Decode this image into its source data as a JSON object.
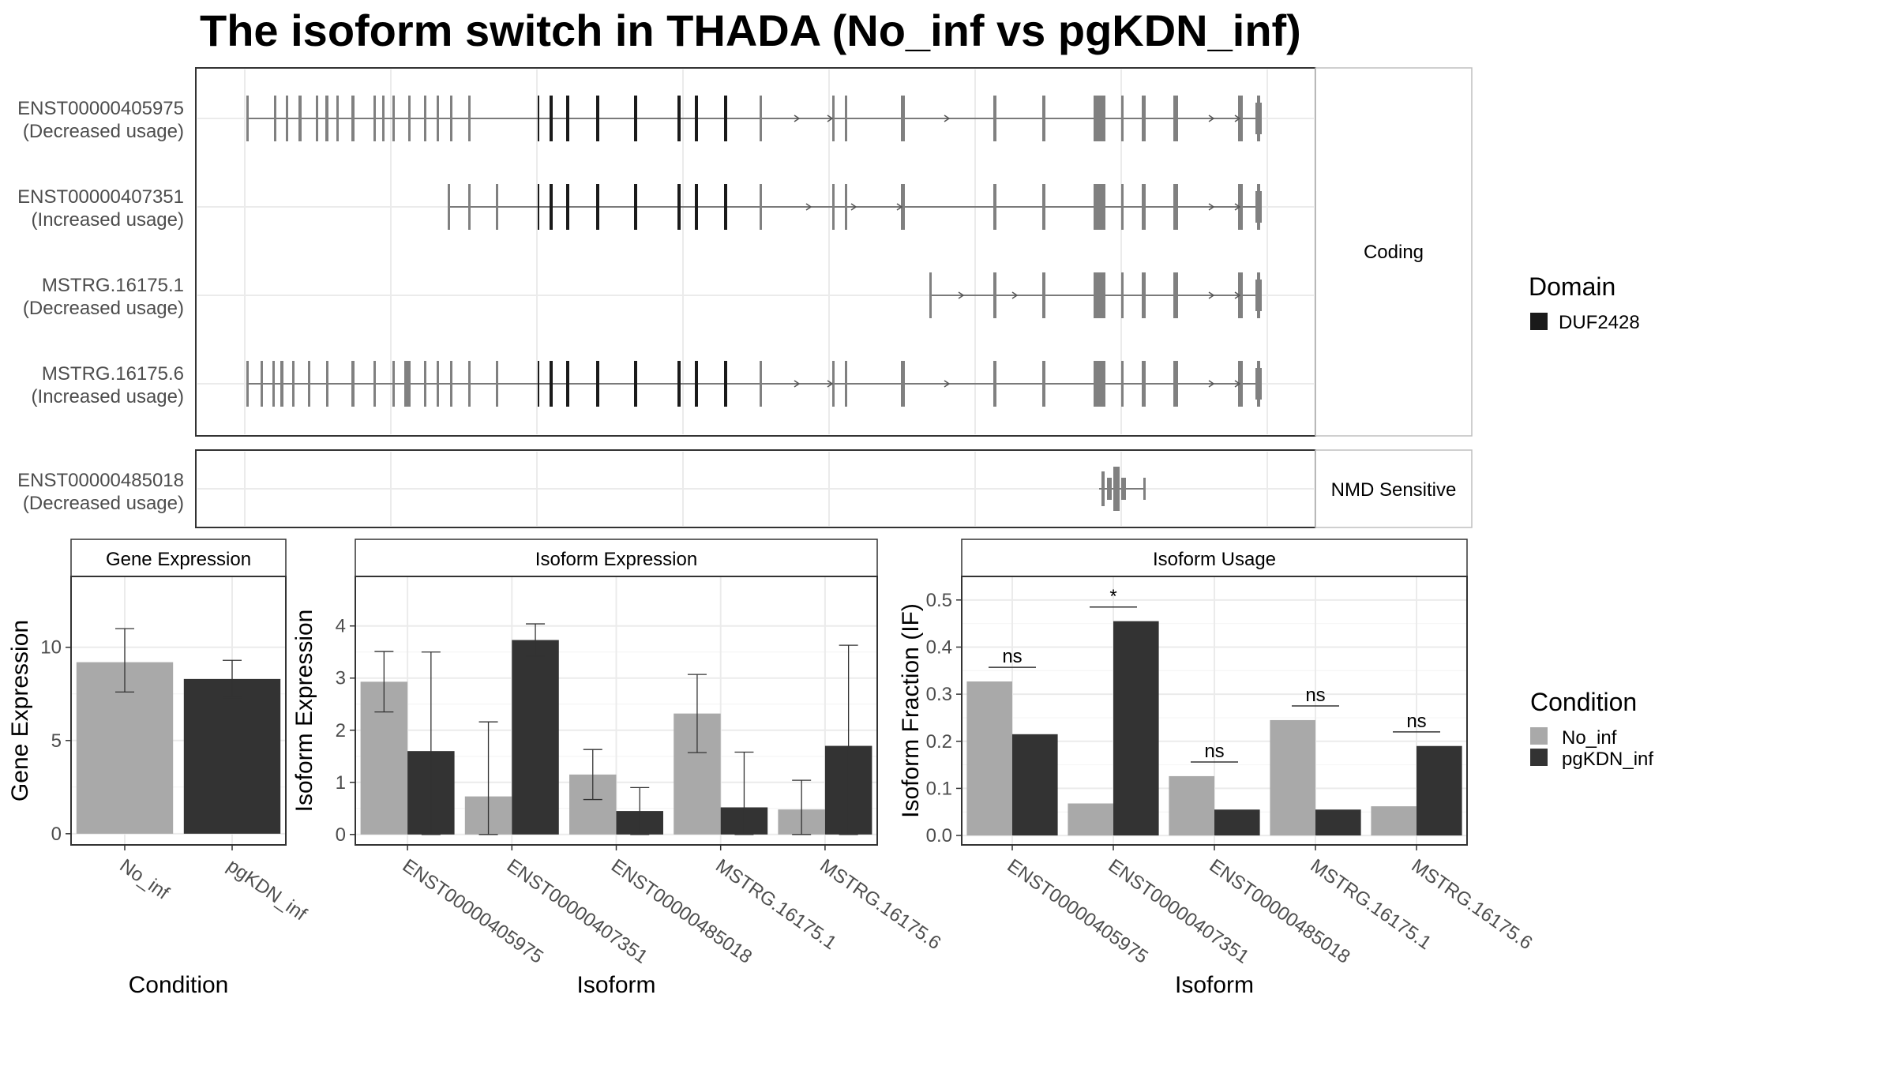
{
  "title": "The isoform switch in THADA (No_inf vs pgKDN_inf)",
  "colors": {
    "No_inf": "#a9a9a9",
    "pgKDN_inf": "#333333",
    "domain": "#1a1a1a",
    "exon": "#808080",
    "grid": "#ebebeb",
    "strip_bg": "#ffffff",
    "panel_border": "#333333"
  },
  "structure": {
    "groups": [
      "Coding",
      "NMD Sensitive"
    ],
    "transcripts": [
      {
        "id": "ENST00000405975",
        "usage": "(Decreased usage)",
        "group": "Coding"
      },
      {
        "id": "ENST00000407351",
        "usage": "(Increased usage)",
        "group": "Coding"
      },
      {
        "id": "MSTRG.16175.1",
        "usage": "(Decreased usage)",
        "group": "Coding"
      },
      {
        "id": "MSTRG.16175.6",
        "usage": "(Increased usage)",
        "group": "Coding"
      },
      {
        "id": "ENST00000485018",
        "usage": "(Decreased usage)",
        "group": "NMD Sensitive"
      }
    ],
    "legend_title": "Domain",
    "legend_items": [
      "DUF2428"
    ]
  },
  "chart_data": [
    {
      "type": "bar",
      "strip": "Gene Expression",
      "categories": [
        "No_inf",
        "pgKDN_inf"
      ],
      "values": [
        9.2,
        8.3
      ],
      "error_low": [
        7.6,
        7.3
      ],
      "error_high": [
        11.0,
        9.3
      ],
      "xlabel": "Condition",
      "ylabel": "Gene Expression",
      "ylim": [
        -0.6,
        13.8
      ],
      "yticks": [
        0,
        5,
        10
      ]
    },
    {
      "type": "bar",
      "strip": "Isoform Expression",
      "categories": [
        "ENST00000405975",
        "ENST00000407351",
        "ENST00000485018",
        "MSTRG.16175.1",
        "MSTRG.16175.6"
      ],
      "series": [
        {
          "name": "No_inf",
          "values": [
            2.93,
            0.73,
            1.15,
            2.32,
            0.48
          ],
          "error_low": [
            2.35,
            0.0,
            0.67,
            1.57,
            0.0
          ],
          "error_high": [
            3.51,
            2.16,
            1.63,
            3.07,
            1.04
          ]
        },
        {
          "name": "pgKDN_inf",
          "values": [
            1.6,
            3.73,
            0.45,
            0.52,
            1.7
          ],
          "error_low": [
            0.0,
            3.42,
            0.0,
            0.0,
            0.0
          ],
          "error_high": [
            3.5,
            4.04,
            0.9,
            1.58,
            3.63
          ]
        }
      ],
      "xlabel": "Isoform",
      "ylabel": "Isoform Expression",
      "ylim": [
        -0.2,
        4.95
      ],
      "yticks": [
        0,
        1,
        2,
        3,
        4
      ]
    },
    {
      "type": "bar",
      "strip": "Isoform Usage",
      "categories": [
        "ENST00000405975",
        "ENST00000407351",
        "ENST00000485018",
        "MSTRG.16175.1",
        "MSTRG.16175.6"
      ],
      "series": [
        {
          "name": "No_inf",
          "values": [
            0.327,
            0.068,
            0.126,
            0.245,
            0.062
          ]
        },
        {
          "name": "pgKDN_inf",
          "values": [
            0.215,
            0.455,
            0.055,
            0.055,
            0.19
          ]
        }
      ],
      "significance": [
        "ns",
        "*",
        "ns",
        "ns",
        "ns"
      ],
      "xlabel": "Isoform",
      "ylabel": "Isoform Fraction (IF)",
      "ylim": [
        -0.02,
        0.55
      ],
      "yticks": [
        "0.0",
        "0.1",
        "0.2",
        "0.3",
        "0.4",
        "0.5"
      ]
    }
  ],
  "legend": {
    "title": "Condition",
    "items": [
      "No_inf",
      "pgKDN_inf"
    ]
  }
}
